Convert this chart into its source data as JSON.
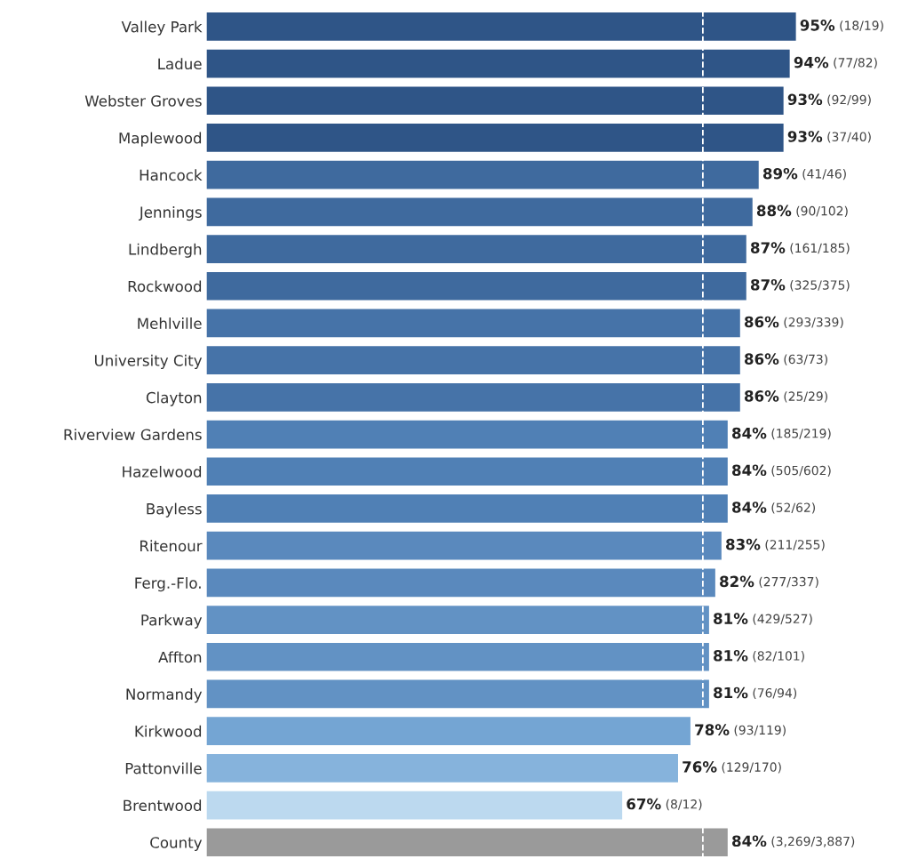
{
  "chart_data": {
    "type": "bar",
    "orientation": "horizontal",
    "categories": [
      "Valley Park",
      "Ladue",
      "Webster Groves",
      "Maplewood",
      "Hancock",
      "Jennings",
      "Lindbergh",
      "Rockwood",
      "Mehlville",
      "University City",
      "Clayton",
      "Riverview Gardens",
      "Hazelwood",
      "Bayless",
      "Ritenour",
      "Ferg.-Flo.",
      "Parkway",
      "Affton",
      "Normandy",
      "Kirkwood",
      "Pattonville",
      "Brentwood",
      "County"
    ],
    "values": [
      95,
      94,
      93,
      93,
      89,
      88,
      87,
      87,
      86,
      86,
      86,
      84,
      84,
      84,
      83,
      82,
      81,
      81,
      81,
      78,
      76,
      67,
      84
    ],
    "colors": [
      "#2f5587",
      "#2f5587",
      "#2f5587",
      "#2f5587",
      "#3f6a9e",
      "#3f6a9e",
      "#3f6a9e",
      "#3f6a9e",
      "#4673a8",
      "#4673a8",
      "#4673a8",
      "#5080b5",
      "#5080b5",
      "#5080b5",
      "#5a89bd",
      "#5a89bd",
      "#6292c4",
      "#6292c4",
      "#6292c4",
      "#74a5d3",
      "#86b3dc",
      "#bcd9ef",
      "#9a9a9a"
    ],
    "value_labels": [
      "95% (18/19)",
      "94% (77/82)",
      "93% (92/99)",
      "93% (37/40)",
      "89% (41/46)",
      "88% (90/102)",
      "87% (161/185)",
      "87% (325/375)",
      "86% (293/339)",
      "86% (63/73)",
      "86% (25/29)",
      "84% (185/219)",
      "84% (505/602)",
      "84% (52/62)",
      "83% (211/255)",
      "82% (277/337)",
      "81% (429/527)",
      "81% (82/101)",
      "81% (76/94)",
      "78% (93/119)",
      "76% (129/170)",
      "67% (8/12)",
      "84% (3,269/3,887)"
    ],
    "ref_lines": [
      {
        "axis": "x",
        "value": 80,
        "color": "#ffffff",
        "line_style": "dashed"
      }
    ],
    "tick_labels": "y",
    "grid": false,
    "legend": false
  }
}
